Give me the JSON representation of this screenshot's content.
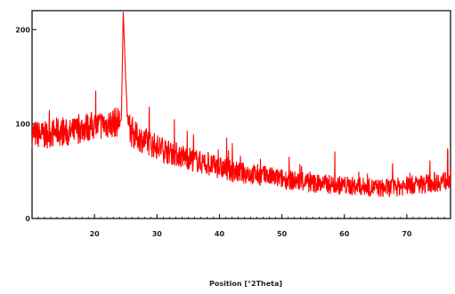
{
  "chart_data": {
    "type": "line",
    "title": "",
    "xlabel": "Position [°2Theta]",
    "ylabel": "",
    "xlim": [
      10,
      77
    ],
    "ylim": [
      0,
      220
    ],
    "x_ticks": [
      20,
      30,
      40,
      50,
      60,
      70
    ],
    "x_tick_labels": [
      "20",
      "30",
      "40",
      "50",
      "60",
      "70"
    ],
    "y_ticks": [
      0,
      100,
      200
    ],
    "y_tick_labels": [
      "0",
      "100",
      "200"
    ],
    "grid": false,
    "legend": "none",
    "series": [
      {
        "color": "#ff0000",
        "x": [
          10,
          12,
          14,
          16,
          18,
          20,
          22,
          23.5,
          24.3,
          24.6,
          25.0,
          25.4,
          26,
          28,
          30,
          32,
          34,
          36,
          38,
          40,
          42,
          44,
          46,
          48,
          50,
          52,
          54,
          56,
          58,
          60,
          62,
          64,
          66,
          68,
          70,
          72,
          74,
          76,
          77
        ],
        "y": [
          90,
          88,
          92,
          90,
          96,
          98,
          100,
          102,
          104,
          220,
          145,
          95,
          90,
          82,
          76,
          70,
          66,
          62,
          57,
          54,
          50,
          48,
          46,
          44,
          42,
          40,
          38,
          37,
          36,
          35,
          34,
          33,
          32,
          33,
          35,
          36,
          38,
          40,
          42
        ]
      }
    ]
  }
}
